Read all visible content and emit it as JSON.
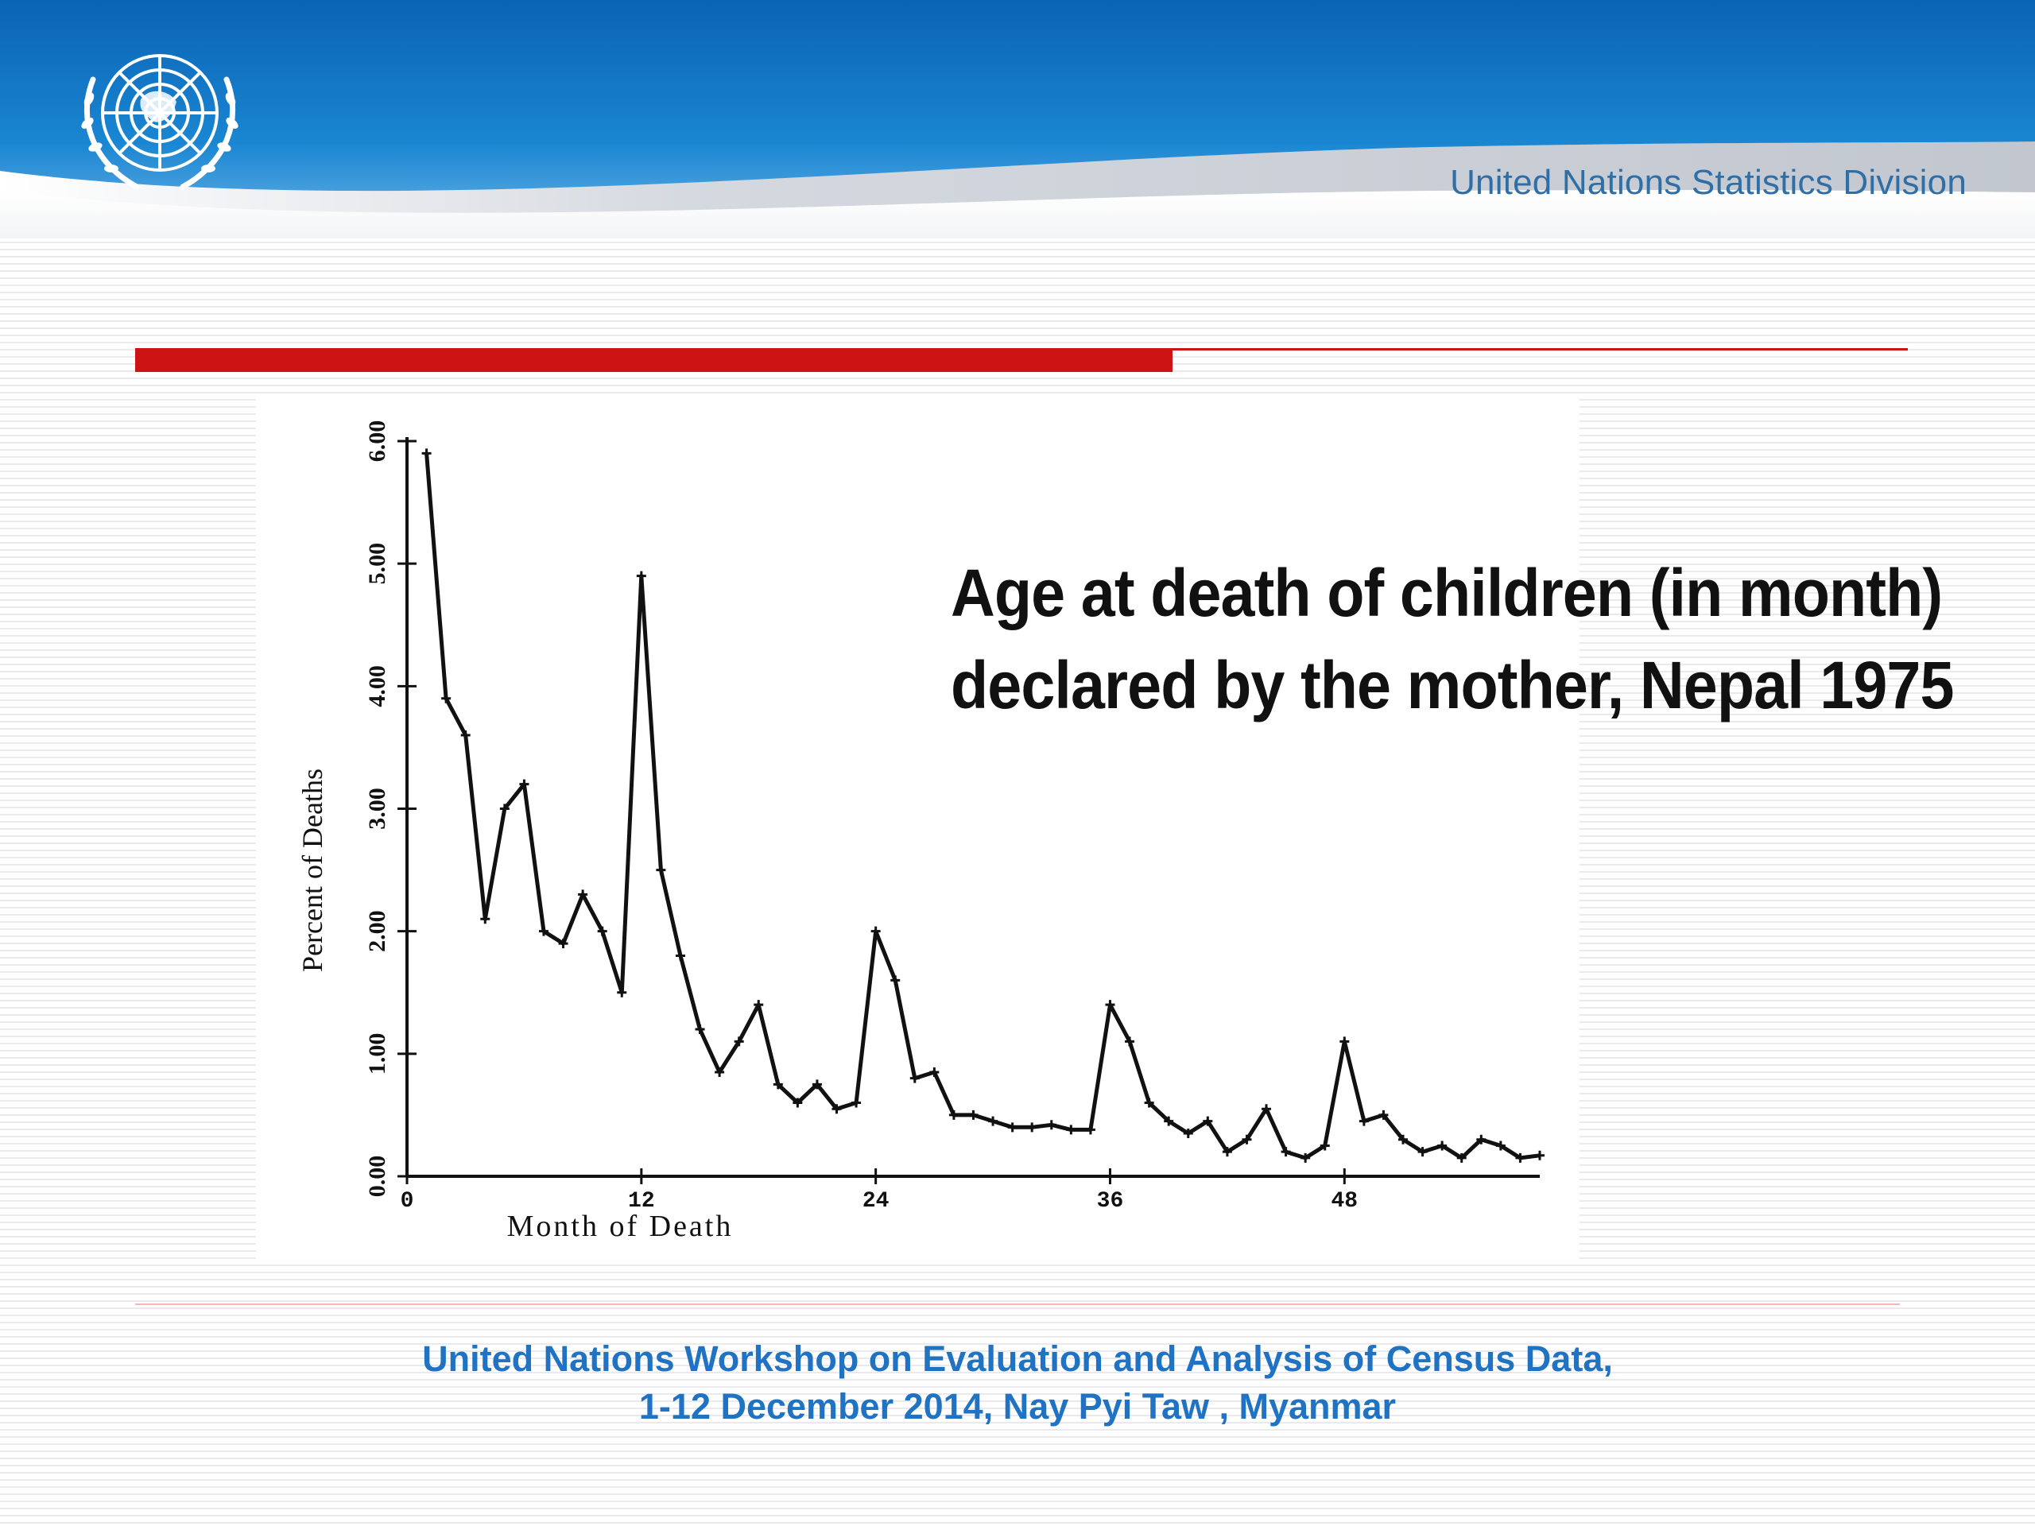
{
  "header": {
    "org_name": "United Nations Statistics Division",
    "logo": "un-emblem-icon",
    "colors": {
      "banner": "#0a6fc1",
      "accent_bar": "#cc1414",
      "footer_text": "#1f73c2"
    }
  },
  "slide_title": {
    "line1": "Age at death of children (in month)",
    "line2": "declared by the mother, Nepal 1975"
  },
  "chart_data": {
    "type": "line",
    "title": "",
    "xlabel": "Month of Death",
    "ylabel": "Percent of Deaths",
    "xlim": [
      0,
      58
    ],
    "ylim": [
      0,
      6
    ],
    "x_ticks": [
      0,
      12,
      24,
      36,
      48
    ],
    "x_tick_labels": [
      "0",
      "12",
      "24",
      "36",
      "48"
    ],
    "y_ticks": [
      0,
      1,
      2,
      3,
      4,
      5,
      6
    ],
    "y_tick_labels": [
      "0.00",
      "1.00",
      "2.00",
      "3.00",
      "4.00",
      "5.00",
      "6.00"
    ],
    "grid": false,
    "series": [
      {
        "x": [
          1,
          2,
          3,
          4,
          5,
          6,
          7,
          8,
          9,
          10,
          11,
          12,
          13,
          14,
          15,
          16,
          17,
          18,
          19,
          20,
          21,
          22,
          23,
          24,
          25,
          26,
          27,
          28,
          29,
          30,
          31,
          32,
          33,
          34,
          35,
          36,
          37,
          38,
          39,
          40,
          41,
          42,
          43,
          44,
          45,
          46,
          47,
          48,
          49,
          50,
          51,
          52,
          53,
          54,
          55,
          56,
          57,
          58
        ],
        "y": [
          5.9,
          3.9,
          3.6,
          2.1,
          3.0,
          3.2,
          2.0,
          1.9,
          2.3,
          2.0,
          1.5,
          4.9,
          2.5,
          1.8,
          1.2,
          0.85,
          1.1,
          1.4,
          0.75,
          0.6,
          0.75,
          0.55,
          0.6,
          2.0,
          1.6,
          0.8,
          0.85,
          0.5,
          0.5,
          0.45,
          0.4,
          0.4,
          0.42,
          0.38,
          0.38,
          1.4,
          1.1,
          0.6,
          0.45,
          0.35,
          0.45,
          0.2,
          0.3,
          0.55,
          0.2,
          0.15,
          0.25,
          1.1,
          0.45,
          0.5,
          0.3,
          0.2,
          0.25,
          0.15,
          0.3,
          0.25,
          0.15,
          0.17
        ]
      }
    ]
  },
  "footer": {
    "line1": "United Nations Workshop on  Evaluation and Analysis of Census Data,",
    "line2": "1-12 December 2014,  Nay Pyi Taw , Myanmar"
  }
}
